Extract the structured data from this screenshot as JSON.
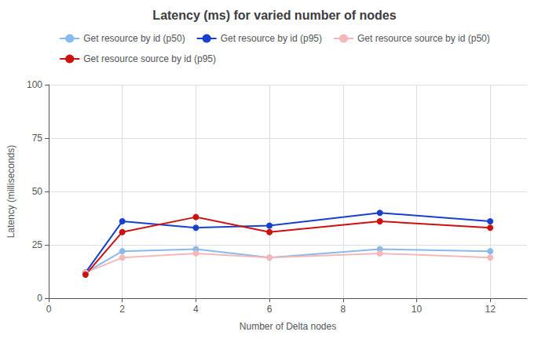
{
  "chart_data": {
    "type": "line",
    "title": "Latency (ms) for varied number of nodes",
    "xlabel": "Number of Delta nodes",
    "ylabel": "Latency (milliseconds)",
    "x": [
      1,
      2,
      4,
      6,
      9,
      12
    ],
    "series": [
      {
        "name": "Get resource by id (p50)",
        "color": "#8ab9ed",
        "values": [
          12,
          22,
          23,
          19,
          23,
          22
        ]
      },
      {
        "name": "Get resource by id (p95)",
        "color": "#1840cc",
        "values": [
          12,
          36,
          33,
          34,
          40,
          36
        ]
      },
      {
        "name": "Get resource source by id (p50)",
        "color": "#f5b8b8",
        "values": [
          12,
          19,
          21,
          19,
          21,
          19
        ]
      },
      {
        "name": "Get resource source by id (p95)",
        "color": "#cc1111",
        "values": [
          11,
          31,
          38,
          31,
          36,
          33
        ]
      }
    ],
    "xlim": [
      0,
      13
    ],
    "xticks": [
      0,
      2,
      4,
      6,
      8,
      10,
      12
    ],
    "ylim": [
      0,
      100
    ],
    "yticks": [
      0,
      25,
      50,
      75,
      100
    ],
    "grid": true,
    "legend": "top",
    "marker": "circle"
  }
}
